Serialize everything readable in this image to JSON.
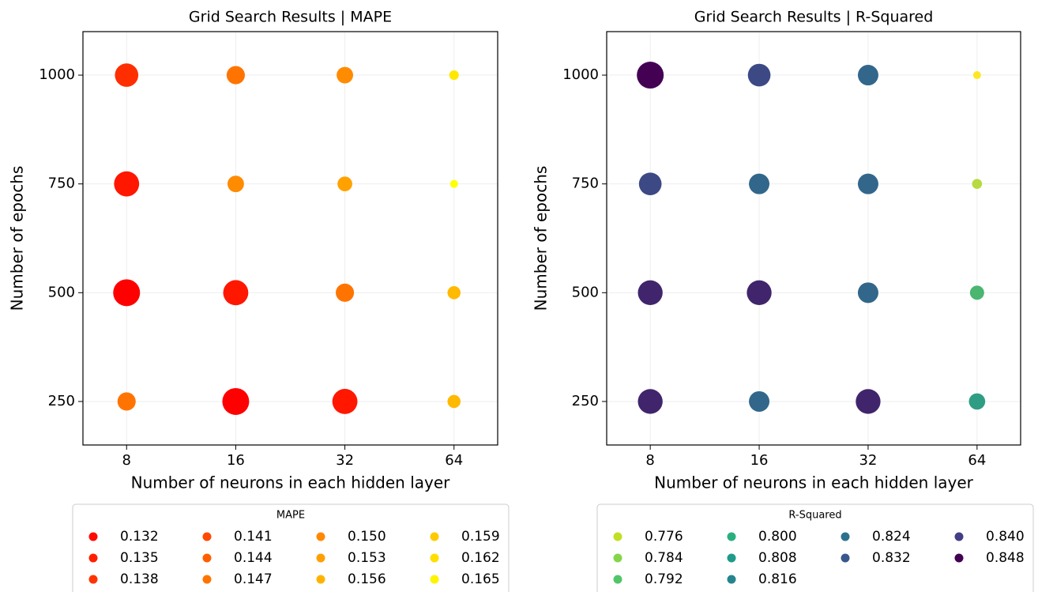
{
  "chart_data": [
    {
      "type": "scatter",
      "title": "Grid Search Results | MAPE",
      "xlabel": "Number of neurons in each hidden layer",
      "ylabel": "Number of epochs",
      "categories": [
        "8",
        "16",
        "32",
        "64"
      ],
      "x": [
        "8",
        "16",
        "32",
        "64",
        "8",
        "16",
        "32",
        "64",
        "8",
        "16",
        "32",
        "64",
        "8",
        "16",
        "32",
        "64"
      ],
      "y": [
        1000,
        1000,
        1000,
        1000,
        750,
        750,
        750,
        750,
        500,
        500,
        500,
        500,
        250,
        250,
        250,
        250
      ],
      "values": [
        0.138,
        0.147,
        0.15,
        0.162,
        0.135,
        0.15,
        0.153,
        0.165,
        0.132,
        0.135,
        0.147,
        0.156,
        0.147,
        0.132,
        0.135,
        0.156
      ],
      "colormap": [
        "#ff0000",
        "#ffff00"
      ],
      "size_ascending": false,
      "ylim": [
        150,
        1100
      ],
      "yticks": [
        250,
        500,
        750,
        1000
      ],
      "grid": true,
      "legend": {
        "title": "MAPE",
        "labels": [
          "0.132",
          "0.135",
          "0.138",
          "0.141",
          "0.144",
          "0.147",
          "0.150",
          "0.153",
          "0.156",
          "0.159",
          "0.162",
          "0.165"
        ],
        "colors": [
          "#ff0a00",
          "#ff1f00",
          "#ff3300",
          "#ff4a00",
          "#ff5e00",
          "#ff7400",
          "#ff8800",
          "#ff9f00",
          "#ffb300",
          "#ffc900",
          "#ffde00",
          "#fff400"
        ]
      }
    },
    {
      "type": "scatter",
      "title": "Grid Search Results | R-Squared",
      "xlabel": "Number of neurons in each hidden layer",
      "ylabel": "Number of epochs",
      "categories": [
        "8",
        "16",
        "32",
        "64"
      ],
      "x": [
        "8",
        "16",
        "32",
        "64",
        "8",
        "16",
        "32",
        "64",
        "8",
        "16",
        "32",
        "64",
        "8",
        "16",
        "32",
        "64"
      ],
      "y": [
        1000,
        1000,
        1000,
        1000,
        750,
        750,
        750,
        750,
        500,
        500,
        500,
        500,
        250,
        250,
        250,
        250
      ],
      "values": [
        0.848,
        0.832,
        0.824,
        0.776,
        0.832,
        0.824,
        0.824,
        0.784,
        0.84,
        0.84,
        0.824,
        0.8,
        0.84,
        0.824,
        0.84,
        0.808
      ],
      "colormap": [
        "#fde725",
        "#5ec962",
        "#21918c",
        "#3b528b",
        "#440154"
      ],
      "size_ascending": true,
      "ylim": [
        150,
        1100
      ],
      "yticks": [
        250,
        500,
        750,
        1000
      ],
      "grid": true,
      "legend": {
        "title": "R-Squared",
        "labels": [
          "0.776",
          "0.784",
          "0.792",
          "0.800",
          "0.808",
          "0.816",
          "0.824",
          "0.832",
          "0.840",
          "0.848"
        ],
        "colors": [
          "#c2df23",
          "#86d549",
          "#52c569",
          "#2ab07f",
          "#1e9b8a",
          "#25858e",
          "#2d708e",
          "#38588c",
          "#433e85",
          "#440154"
        ]
      }
    }
  ]
}
